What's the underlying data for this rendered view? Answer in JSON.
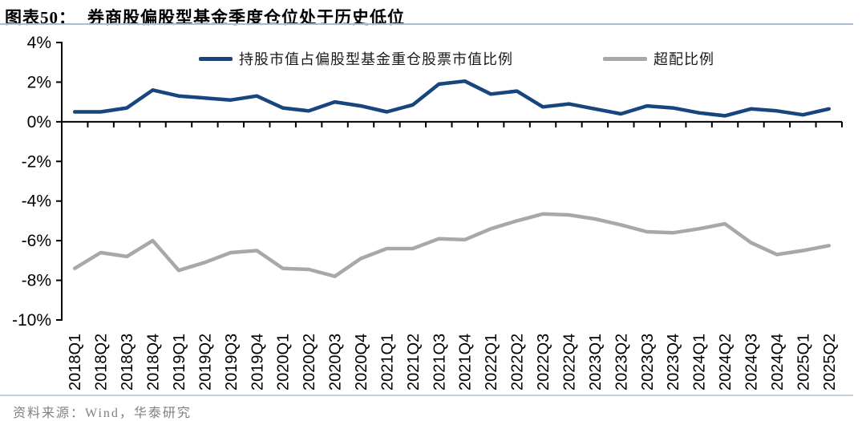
{
  "header": {
    "figure_label": "图表50：",
    "title": "券商股偏股型基金季度仓位处于历史低位"
  },
  "footer": {
    "source": "资料来源：Wind，华泰研究"
  },
  "colors": {
    "primary_line": "#17457E",
    "secondary_line": "#A8A8A8",
    "accent_rule": "#A9BCD4",
    "axis": "#000000",
    "footer_text": "#808080"
  },
  "chart_data": {
    "type": "line",
    "title": "券商股偏股型基金季度仓位处于历史低位",
    "categories": [
      "2018Q1",
      "2018Q2",
      "2018Q3",
      "2018Q4",
      "2019Q1",
      "2019Q2",
      "2019Q3",
      "2019Q4",
      "2020Q1",
      "2020Q2",
      "2020Q3",
      "2020Q4",
      "2021Q1",
      "2021Q2",
      "2021Q3",
      "2021Q4",
      "2022Q1",
      "2022Q2",
      "2022Q3",
      "2022Q4",
      "2023Q1",
      "2023Q2",
      "2023Q3",
      "2023Q4",
      "2024Q1",
      "2024Q2",
      "2024Q3",
      "2024Q4",
      "2025Q1",
      "2025Q2"
    ],
    "series": [
      {
        "name": "持股市值占偏股型基金重仓股票市值比例",
        "color": "#17457E",
        "values": [
          0.5,
          0.5,
          0.7,
          1.6,
          1.3,
          1.2,
          1.1,
          1.3,
          0.7,
          0.55,
          1.0,
          0.8,
          0.5,
          0.85,
          1.9,
          2.05,
          1.4,
          1.55,
          0.75,
          0.9,
          0.65,
          0.4,
          0.8,
          0.7,
          0.45,
          0.3,
          0.65,
          0.55,
          0.35,
          0.65
        ]
      },
      {
        "name": "超配比例",
        "color": "#A8A8A8",
        "values": [
          -7.4,
          -6.6,
          -6.8,
          -6.0,
          -7.5,
          -7.1,
          -6.6,
          -6.5,
          -7.4,
          -7.45,
          -7.8,
          -6.9,
          -6.4,
          -6.4,
          -5.9,
          -5.95,
          -5.4,
          -5.0,
          -4.65,
          -4.7,
          -4.9,
          -5.2,
          -5.55,
          -5.6,
          -5.4,
          -5.15,
          -6.1,
          -6.7,
          -6.5,
          -6.25
        ]
      }
    ],
    "xlabel": "",
    "ylabel": "",
    "ylim": [
      -10,
      4
    ],
    "ytick_step": 2,
    "ytick_format": "percent",
    "grid": false,
    "legend_position": "top-inside",
    "axis_cross_at_zero": true
  }
}
